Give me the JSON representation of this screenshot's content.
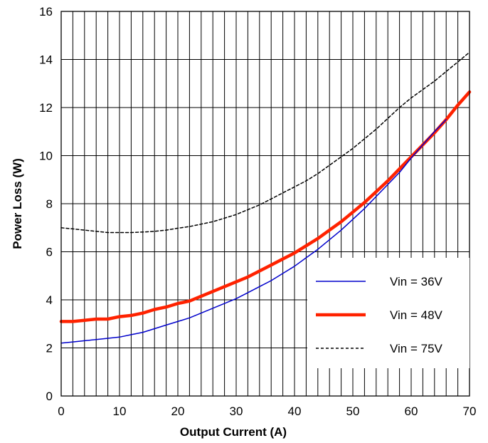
{
  "chart_data": {
    "type": "line",
    "xlabel": "Output Current (A)",
    "ylabel": "Power Loss  (W)",
    "xlim": [
      0,
      70
    ],
    "ylim": [
      0,
      16
    ],
    "x_ticks": [
      0,
      10,
      20,
      30,
      40,
      50,
      60,
      70
    ],
    "y_ticks": [
      0,
      2,
      4,
      6,
      8,
      10,
      12,
      14,
      16
    ],
    "grid": "vertical every 2 A, horizontal every 2 W",
    "legend_position": "bottom-right",
    "series": [
      {
        "name": "Vin = 36V",
        "color": "#0000cc",
        "style": "solid-thin",
        "x": [
          0,
          2,
          4,
          6,
          8,
          10,
          12,
          14,
          16,
          18,
          20,
          22,
          24,
          26,
          28,
          30,
          32,
          34,
          36,
          38,
          40,
          42,
          44,
          46,
          48,
          50,
          52,
          54,
          56,
          58,
          60,
          62,
          64,
          66
        ],
        "y": [
          2.2,
          2.25,
          2.3,
          2.35,
          2.4,
          2.45,
          2.55,
          2.65,
          2.8,
          2.95,
          3.1,
          3.25,
          3.45,
          3.65,
          3.85,
          4.05,
          4.3,
          4.55,
          4.8,
          5.1,
          5.4,
          5.75,
          6.1,
          6.5,
          6.9,
          7.35,
          7.8,
          8.3,
          8.8,
          9.3,
          9.9,
          10.45,
          11.0,
          11.5
        ]
      },
      {
        "name": "Vin = 48V",
        "color": "#ff2200",
        "style": "solid-thick",
        "x": [
          0,
          2,
          4,
          6,
          8,
          10,
          12,
          14,
          16,
          18,
          20,
          22,
          24,
          26,
          28,
          30,
          32,
          34,
          36,
          38,
          40,
          42,
          44,
          46,
          48,
          50,
          52,
          54,
          56,
          58,
          60,
          62,
          64,
          66,
          68,
          70
        ],
        "y": [
          3.1,
          3.1,
          3.15,
          3.2,
          3.2,
          3.3,
          3.35,
          3.45,
          3.6,
          3.7,
          3.85,
          3.95,
          4.15,
          4.35,
          4.55,
          4.75,
          4.95,
          5.2,
          5.45,
          5.7,
          5.95,
          6.25,
          6.55,
          6.9,
          7.25,
          7.65,
          8.05,
          8.5,
          8.95,
          9.45,
          9.95,
          10.45,
          10.95,
          11.5,
          12.1,
          12.65
        ]
      },
      {
        "name": "Vin = 75V",
        "color": "#000000",
        "style": "dashed",
        "x": [
          0,
          2,
          4,
          6,
          8,
          10,
          12,
          14,
          16,
          18,
          20,
          22,
          24,
          26,
          28,
          30,
          32,
          34,
          36,
          38,
          40,
          42,
          44,
          46,
          48,
          50,
          52,
          54,
          56,
          58,
          60,
          62,
          64,
          66,
          68,
          70
        ],
        "y": [
          7.0,
          6.95,
          6.9,
          6.85,
          6.8,
          6.8,
          6.8,
          6.82,
          6.85,
          6.9,
          6.98,
          7.05,
          7.15,
          7.25,
          7.4,
          7.55,
          7.75,
          7.95,
          8.2,
          8.45,
          8.7,
          8.95,
          9.25,
          9.6,
          9.95,
          10.3,
          10.7,
          11.1,
          11.55,
          12.0,
          12.4,
          12.75,
          13.1,
          13.5,
          13.9,
          14.3
        ]
      }
    ]
  }
}
